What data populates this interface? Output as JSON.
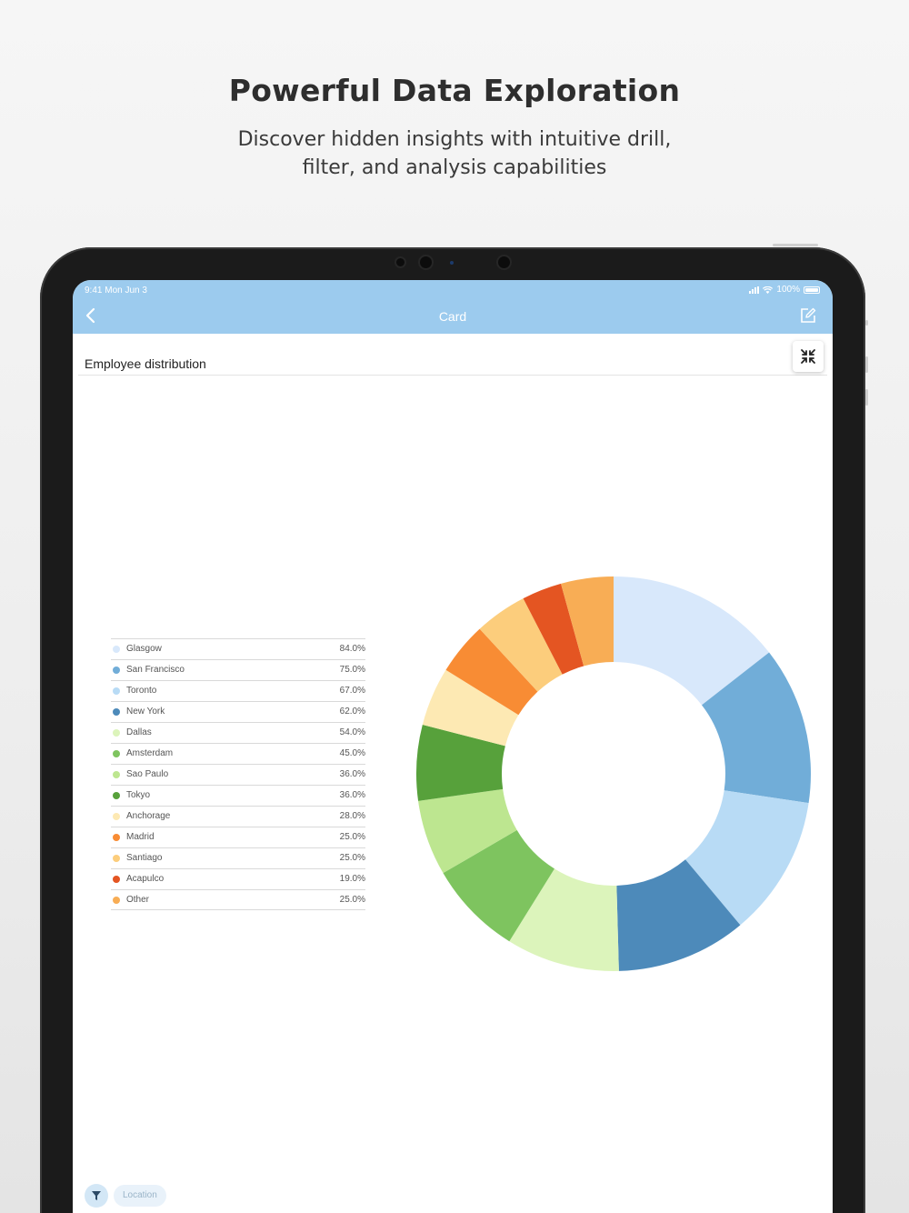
{
  "promo": {
    "headline": "Powerful Data Exploration",
    "subline": "Discover hidden insights with intuitive drill, filter, and analysis capabilities"
  },
  "status_bar": {
    "time": "9:41  Mon Jun 3",
    "battery": "100%"
  },
  "navbar": {
    "title": "Card",
    "back_icon": "chevron-left-icon",
    "edit_icon": "edit-icon"
  },
  "card": {
    "title": "Employee distribution",
    "expand_icon": "collapse-arrows-icon"
  },
  "filters": {
    "filter_icon": "filter-icon",
    "location_label": "Location"
  },
  "chart_data": {
    "type": "pie",
    "style": "donut",
    "legend_position": "left",
    "categories": [
      "Glasgow",
      "San Francisco",
      "Toronto",
      "New York",
      "Dallas",
      "Amsterdam",
      "Sao Paulo",
      "Tokyo",
      "Anchorage",
      "Madrid",
      "Santiago",
      "Acapulco",
      "Other"
    ],
    "values": [
      84.0,
      75.0,
      67.0,
      62.0,
      54.0,
      45.0,
      36.0,
      36.0,
      28.0,
      25.0,
      25.0,
      19.0,
      25.0
    ],
    "labels": [
      "84.0%",
      "75.0%",
      "67.0%",
      "62.0%",
      "54.0%",
      "45.0%",
      "36.0%",
      "36.0%",
      "28.0%",
      "25.0%",
      "25.0%",
      "19.0%",
      "25.0%"
    ],
    "colors": [
      "#d8e8fb",
      "#71add8",
      "#b8dbf5",
      "#4d8aba",
      "#dcf4bb",
      "#7ec45f",
      "#bde690",
      "#57a13b",
      "#fde9b3",
      "#f88c34",
      "#fccd7c",
      "#e45522",
      "#f8ad55"
    ]
  }
}
